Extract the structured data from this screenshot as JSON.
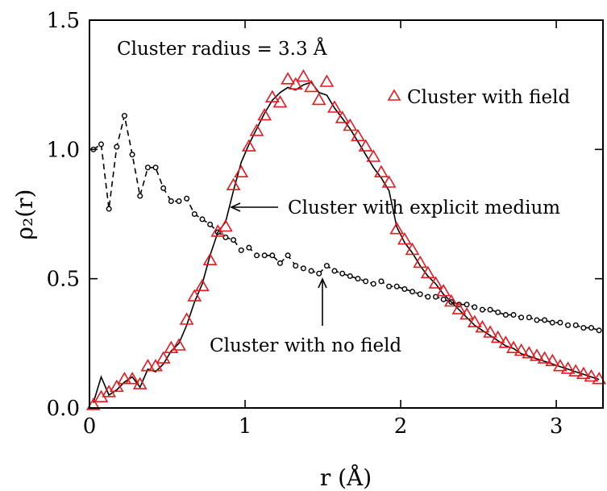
{
  "chart_data": {
    "type": "line",
    "title": "",
    "xlabel": "r (Å)",
    "ylabel": "ρ₂(r)",
    "xlim": [
      0,
      3.3
    ],
    "ylim": [
      0,
      1.5
    ],
    "x_ticks": [
      0,
      1,
      2,
      3
    ],
    "x_tick_labels": [
      "0",
      "1",
      "2",
      "3"
    ],
    "y_ticks": [
      0,
      0.5,
      1.0,
      1.5
    ],
    "y_tick_labels": [
      "0.0",
      "0.5",
      "1.0",
      "1.5"
    ],
    "grid": false,
    "legend": {
      "position": "top-right",
      "entries": [
        "Cluster with field"
      ]
    },
    "series": [
      {
        "name": "Cluster with field",
        "marker": "triangle",
        "color": "#e8171f",
        "x": [
          0.025,
          0.075,
          0.125,
          0.175,
          0.225,
          0.275,
          0.325,
          0.375,
          0.425,
          0.475,
          0.525,
          0.575,
          0.625,
          0.675,
          0.725,
          0.775,
          0.825,
          0.875,
          0.925,
          0.975,
          1.025,
          1.075,
          1.125,
          1.175,
          1.225,
          1.275,
          1.325,
          1.375,
          1.425,
          1.475,
          1.525,
          1.575,
          1.625,
          1.675,
          1.725,
          1.775,
          1.825,
          1.875,
          1.925,
          1.975,
          2.025,
          2.075,
          2.125,
          2.175,
          2.225,
          2.275,
          2.325,
          2.375,
          2.425,
          2.475,
          2.525,
          2.575,
          2.625,
          2.675,
          2.725,
          2.775,
          2.825,
          2.875,
          2.925,
          2.975,
          3.025,
          3.075,
          3.125,
          3.175,
          3.225,
          3.275
        ],
        "values": [
          0.01,
          0.04,
          0.06,
          0.08,
          0.11,
          0.11,
          0.09,
          0.16,
          0.16,
          0.19,
          0.23,
          0.24,
          0.34,
          0.43,
          0.47,
          0.57,
          0.68,
          0.7,
          0.86,
          0.91,
          1.01,
          1.07,
          1.13,
          1.2,
          1.18,
          1.27,
          1.25,
          1.28,
          1.24,
          1.19,
          1.26,
          1.16,
          1.12,
          1.09,
          1.05,
          1.01,
          0.97,
          0.91,
          0.87,
          0.69,
          0.65,
          0.61,
          0.56,
          0.52,
          0.48,
          0.45,
          0.41,
          0.38,
          0.36,
          0.33,
          0.31,
          0.29,
          0.27,
          0.25,
          0.23,
          0.22,
          0.21,
          0.2,
          0.19,
          0.18,
          0.16,
          0.15,
          0.14,
          0.13,
          0.12,
          0.11
        ]
      },
      {
        "name": "Cluster with explicit medium",
        "marker": "none",
        "line_style": "solid",
        "color": "#000000",
        "x": [
          0.025,
          0.075,
          0.125,
          0.175,
          0.225,
          0.275,
          0.325,
          0.375,
          0.425,
          0.475,
          0.525,
          0.575,
          0.625,
          0.675,
          0.725,
          0.775,
          0.825,
          0.875,
          0.925,
          0.975,
          1.025,
          1.075,
          1.125,
          1.175,
          1.225,
          1.275,
          1.325,
          1.375,
          1.425,
          1.475,
          1.525,
          1.575,
          1.625,
          1.675,
          1.725,
          1.775,
          1.825,
          1.875,
          1.925,
          1.975,
          2.025,
          2.075,
          2.125,
          2.175,
          2.225,
          2.275,
          2.325,
          2.375,
          2.425,
          2.475,
          2.525,
          2.575,
          2.625,
          2.675,
          2.725,
          2.775,
          2.825,
          2.875,
          2.925,
          2.975,
          3.025,
          3.075,
          3.125,
          3.175,
          3.225,
          3.275
        ],
        "values": [
          0.02,
          0.12,
          0.05,
          0.07,
          0.1,
          0.12,
          0.08,
          0.15,
          0.14,
          0.17,
          0.22,
          0.25,
          0.32,
          0.41,
          0.48,
          0.59,
          0.68,
          0.72,
          0.84,
          0.95,
          1.02,
          1.08,
          1.14,
          1.19,
          1.22,
          1.24,
          1.23,
          1.25,
          1.26,
          1.22,
          1.21,
          1.16,
          1.12,
          1.08,
          1.03,
          0.98,
          0.93,
          0.89,
          0.84,
          0.7,
          0.64,
          0.6,
          0.55,
          0.51,
          0.48,
          0.44,
          0.41,
          0.38,
          0.35,
          0.32,
          0.3,
          0.28,
          0.26,
          0.24,
          0.23,
          0.21,
          0.2,
          0.19,
          0.18,
          0.17,
          0.16,
          0.15,
          0.14,
          0.13,
          0.12,
          0.11
        ]
      },
      {
        "name": "Cluster with no field",
        "marker": "circle",
        "line_style": "dashed",
        "color": "#000000",
        "x": [
          0.025,
          0.075,
          0.125,
          0.175,
          0.225,
          0.275,
          0.325,
          0.375,
          0.425,
          0.475,
          0.525,
          0.575,
          0.625,
          0.675,
          0.725,
          0.775,
          0.825,
          0.875,
          0.925,
          0.975,
          1.025,
          1.075,
          1.125,
          1.175,
          1.225,
          1.275,
          1.325,
          1.375,
          1.425,
          1.475,
          1.525,
          1.575,
          1.625,
          1.675,
          1.725,
          1.775,
          1.825,
          1.875,
          1.925,
          1.975,
          2.025,
          2.075,
          2.125,
          2.175,
          2.225,
          2.275,
          2.325,
          2.375,
          2.425,
          2.475,
          2.525,
          2.575,
          2.625,
          2.675,
          2.725,
          2.775,
          2.825,
          2.875,
          2.925,
          2.975,
          3.025,
          3.075,
          3.125,
          3.175,
          3.225,
          3.275
        ],
        "values": [
          1.0,
          1.02,
          0.77,
          1.01,
          1.13,
          0.98,
          0.82,
          0.93,
          0.93,
          0.85,
          0.8,
          0.8,
          0.81,
          0.75,
          0.73,
          0.71,
          0.68,
          0.66,
          0.65,
          0.61,
          0.62,
          0.59,
          0.59,
          0.59,
          0.56,
          0.59,
          0.55,
          0.54,
          0.53,
          0.52,
          0.55,
          0.53,
          0.52,
          0.51,
          0.5,
          0.49,
          0.48,
          0.49,
          0.47,
          0.47,
          0.46,
          0.45,
          0.44,
          0.43,
          0.43,
          0.42,
          0.41,
          0.4,
          0.4,
          0.39,
          0.38,
          0.38,
          0.37,
          0.36,
          0.36,
          0.35,
          0.35,
          0.34,
          0.34,
          0.33,
          0.33,
          0.32,
          0.32,
          0.31,
          0.31,
          0.3
        ]
      }
    ],
    "annotations": {
      "radius_text": "Cluster radius = 3.3 Å",
      "explicit_medium_label": "Cluster with explicit medium",
      "no_field_label": "Cluster with no field"
    }
  }
}
